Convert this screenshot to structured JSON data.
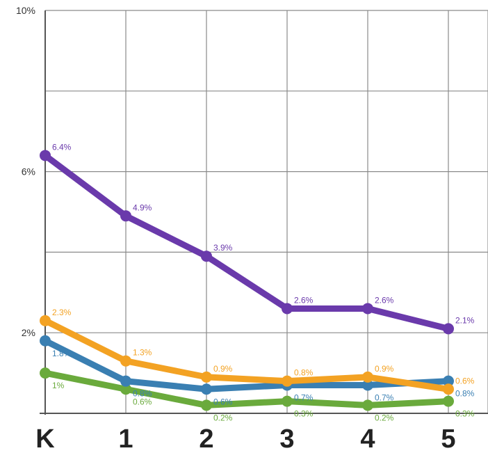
{
  "chart_data": {
    "type": "line",
    "categories": [
      "K",
      "1",
      "2",
      "3",
      "4",
      "5"
    ],
    "ylim": [
      0,
      10
    ],
    "y_ticks": [
      {
        "value": 2,
        "label": "2%"
      },
      {
        "value": 6,
        "label": "6%"
      },
      {
        "value": 10,
        "label": "10%"
      }
    ],
    "grid": true,
    "series": [
      {
        "color": "#6a3aab",
        "values": [
          6.4,
          4.9,
          3.9,
          2.6,
          2.6,
          2.1
        ],
        "labels": [
          "6.4%",
          "4.9%",
          "3.9%",
          "2.6%",
          "2.6%",
          "2.1%"
        ]
      },
      {
        "color": "#f3a223",
        "values": [
          2.3,
          1.3,
          0.9,
          0.8,
          0.9,
          0.6
        ],
        "labels": [
          "2.3%",
          "1.3%",
          "0.9%",
          "0.8%",
          "0.9%",
          "0.6%"
        ]
      },
      {
        "color": "#3a7fb2",
        "values": [
          1.8,
          0.8,
          0.6,
          0.7,
          0.7,
          0.8
        ],
        "labels": [
          "1.8%",
          "0.8%",
          "0.6%",
          "0.7%",
          "0.7%",
          "0.8%"
        ]
      },
      {
        "color": "#6aaa3c",
        "values": [
          1.0,
          0.6,
          0.2,
          0.3,
          0.2,
          0.3
        ],
        "labels": [
          "1%",
          "0.6%",
          "0.2%",
          "0.3%",
          "0.2%",
          "0.3%"
        ]
      }
    ]
  }
}
